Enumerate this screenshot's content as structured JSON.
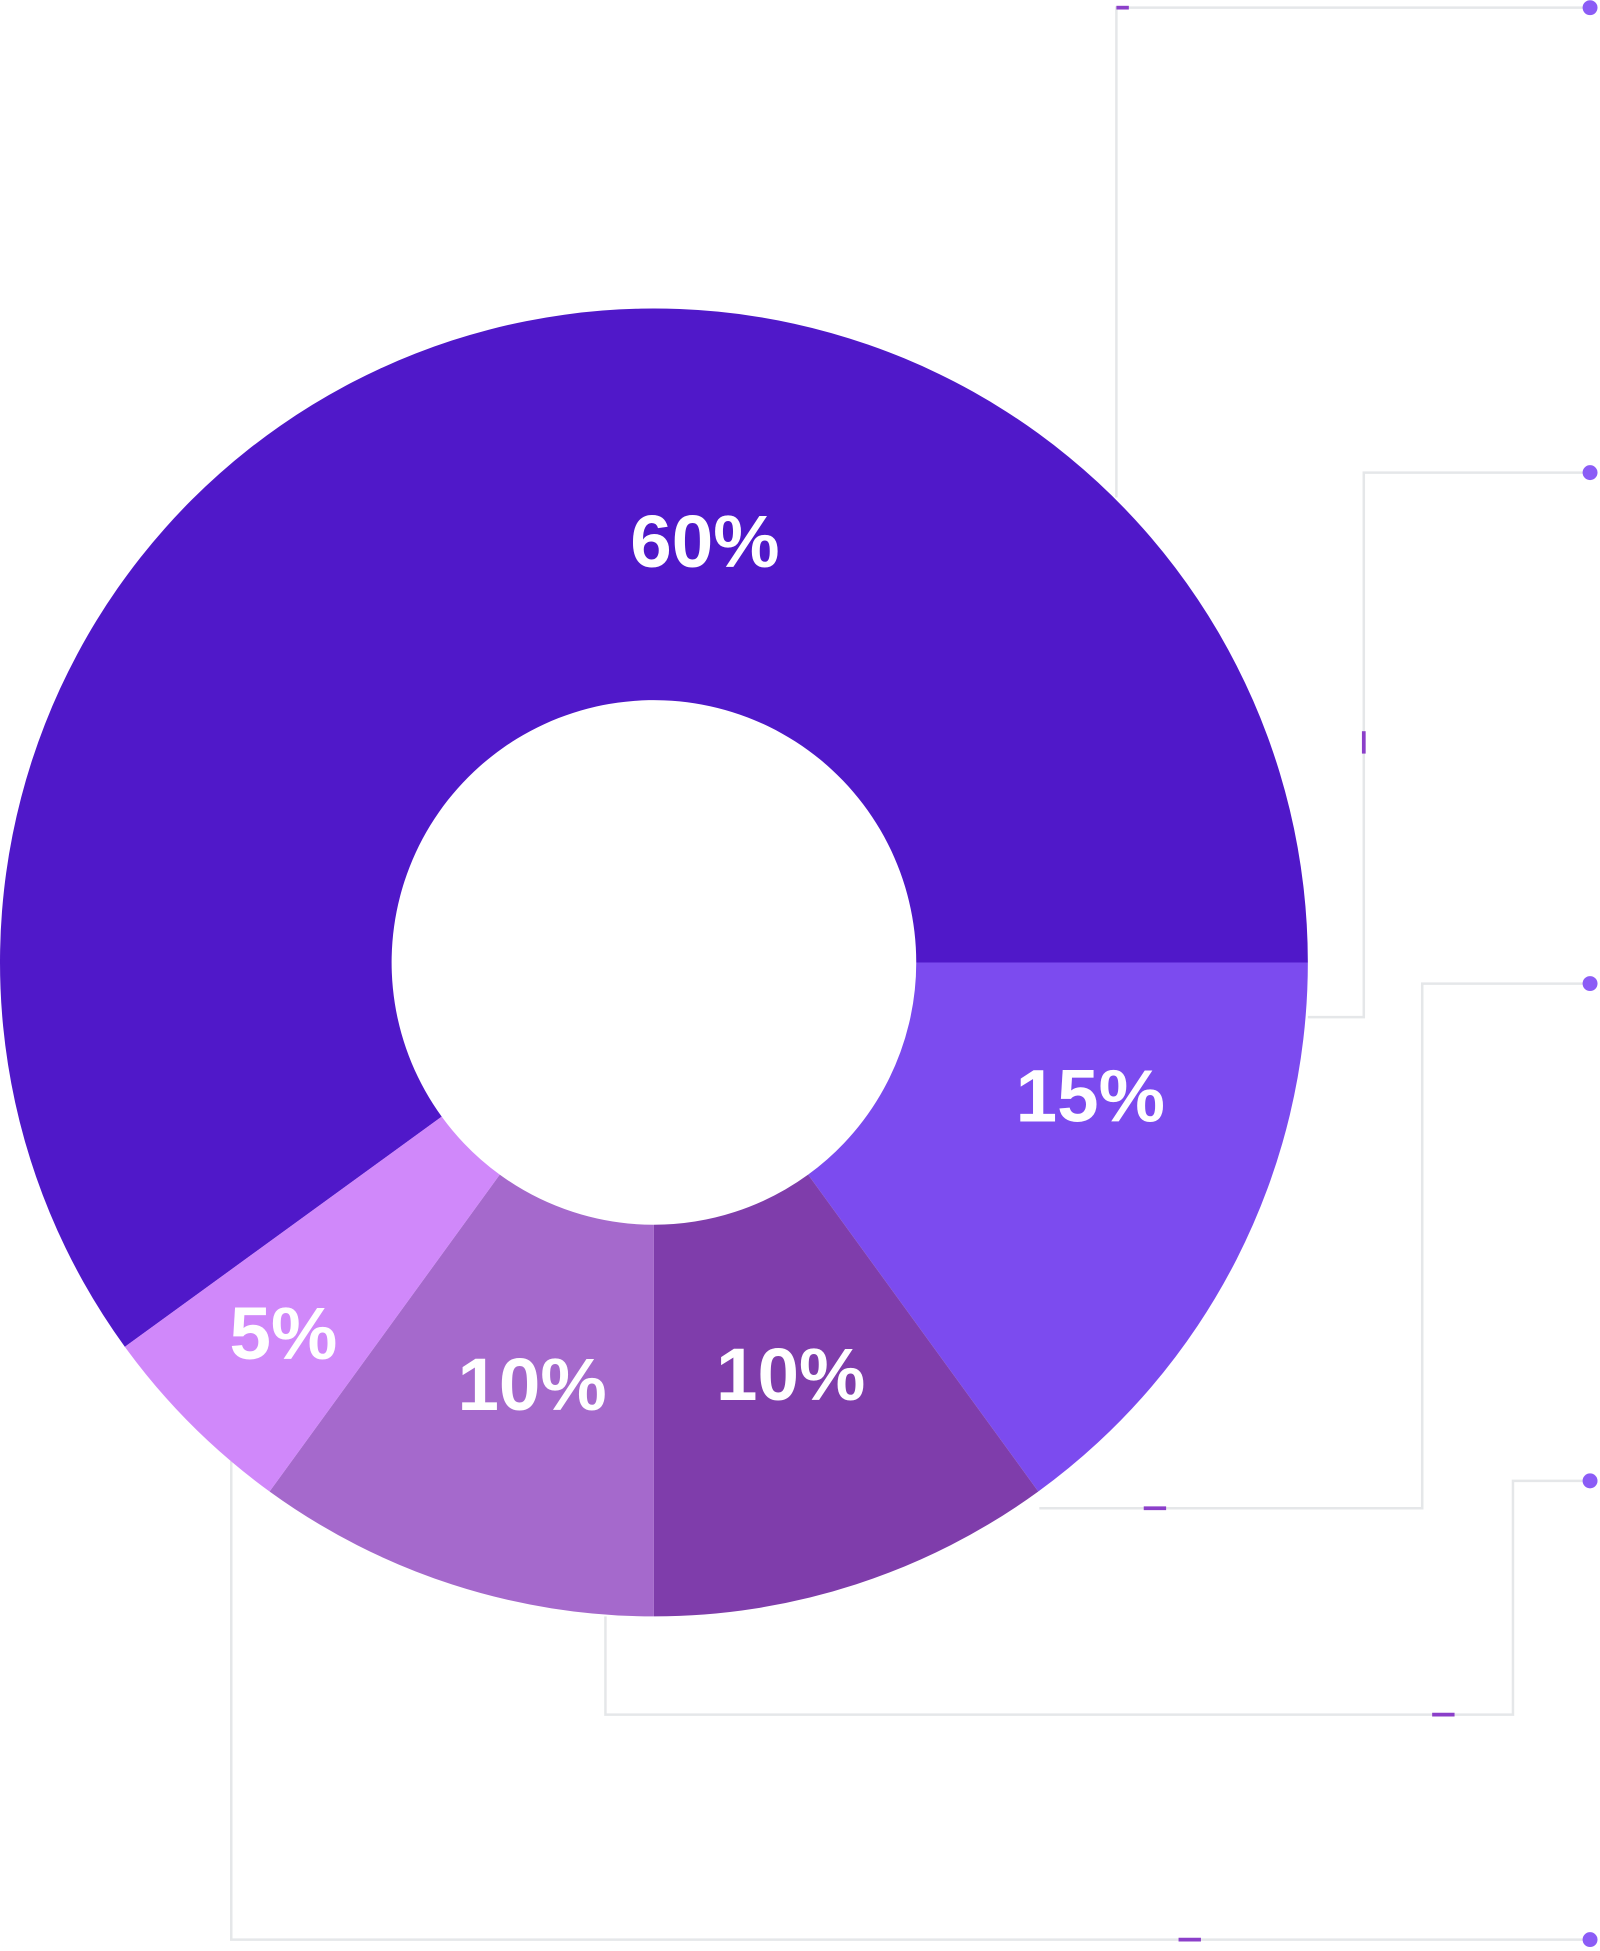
{
  "chart_data": {
    "type": "donut",
    "values": [
      60,
      15,
      10,
      10,
      5
    ],
    "value_labels": [
      "60%",
      "15%",
      "10%",
      "10%",
      "5%"
    ],
    "colors": [
      "#5018c9",
      "#7c4bef",
      "#7f3dab",
      "#a569cc",
      "#d088fa"
    ]
  }
}
